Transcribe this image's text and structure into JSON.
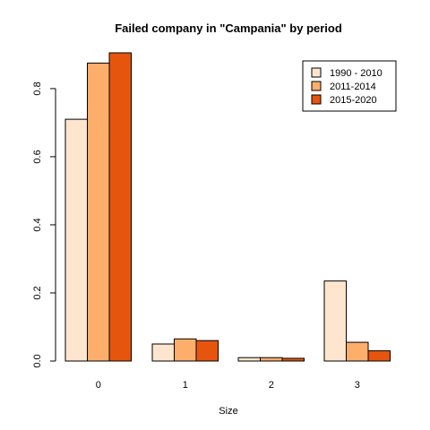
{
  "chart_data": {
    "type": "bar",
    "title": "Failed company in \"Campania\" by period",
    "xlabel": "Size",
    "ylabel": "",
    "categories": [
      "0",
      "1",
      "2",
      "3"
    ],
    "series": [
      {
        "name": "1990 - 2010",
        "color": "#fee6ce",
        "values": [
          0.71,
          0.05,
          0.01,
          0.235
        ]
      },
      {
        "name": "2011-2014",
        "color": "#fdae6b",
        "values": [
          0.875,
          0.065,
          0.01,
          0.055
        ]
      },
      {
        "name": "2015-2020",
        "color": "#e6550d",
        "values": [
          0.905,
          0.06,
          0.008,
          0.03
        ]
      }
    ],
    "ylim": [
      0,
      0.905
    ],
    "yticks": [
      "0.0",
      "0.2",
      "0.4",
      "0.6",
      "0.8"
    ],
    "grid": false,
    "legend_position": "top-right"
  }
}
